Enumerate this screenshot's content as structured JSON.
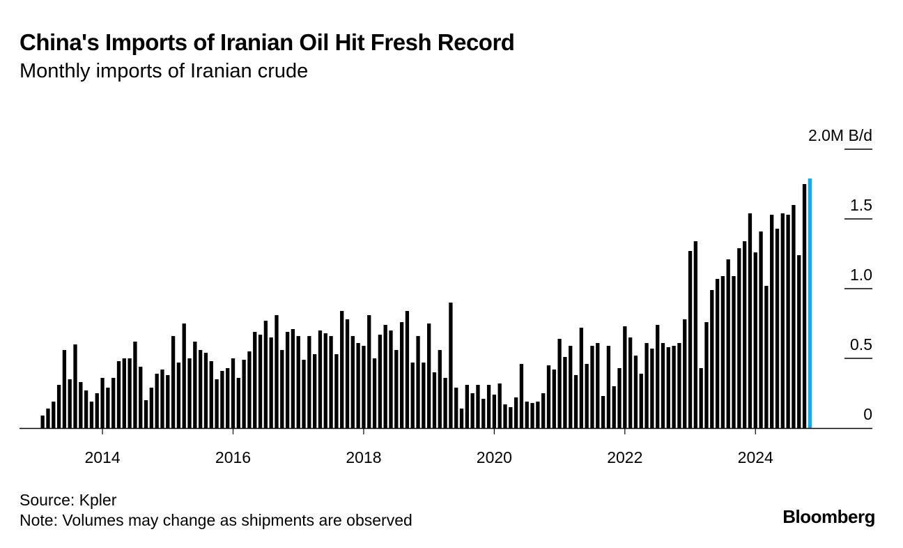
{
  "title": "China's Imports of Iranian Oil Hit Fresh Record",
  "subtitle": "Monthly imports of Iranian crude",
  "source": "Source: Kpler",
  "note": "Note: Volumes may change as shipments are observed",
  "brand": "Bloomberg",
  "colors": {
    "bar": "#000000",
    "highlight": "#1aa7ec",
    "axis": "#000000"
  },
  "chart_data": {
    "type": "bar",
    "title": "China's Imports of Iranian Oil Hit Fresh Record",
    "subtitle": "Monthly imports of Iranian crude",
    "x_start": "2013-02",
    "x_frequency": "monthly",
    "x_tick_labels": [
      "2014",
      "2016",
      "2018",
      "2020",
      "2022",
      "2024"
    ],
    "y_tick_labels": [
      "0",
      "0.5",
      "1.0",
      "1.5",
      "2.0M B/d"
    ],
    "y_ticks": [
      0,
      0.5,
      1.0,
      1.5,
      2.0
    ],
    "ylim": [
      0,
      2.0
    ],
    "y_unit": "M B/d",
    "grid": false,
    "legend": "none",
    "highlight_last": true,
    "values": [
      0.09,
      0.14,
      0.19,
      0.31,
      0.56,
      0.35,
      0.6,
      0.33,
      0.27,
      0.19,
      0.25,
      0.36,
      0.29,
      0.36,
      0.48,
      0.5,
      0.5,
      0.62,
      0.44,
      0.2,
      0.29,
      0.39,
      0.42,
      0.38,
      0.66,
      0.47,
      0.75,
      0.5,
      0.62,
      0.56,
      0.54,
      0.48,
      0.35,
      0.41,
      0.43,
      0.5,
      0.36,
      0.49,
      0.55,
      0.69,
      0.67,
      0.77,
      0.65,
      0.81,
      0.56,
      0.69,
      0.71,
      0.66,
      0.49,
      0.66,
      0.53,
      0.7,
      0.68,
      0.66,
      0.53,
      0.84,
      0.78,
      0.66,
      0.61,
      0.59,
      0.81,
      0.5,
      0.67,
      0.74,
      0.7,
      0.56,
      0.76,
      0.84,
      0.47,
      0.66,
      0.47,
      0.75,
      0.4,
      0.56,
      0.36,
      0.9,
      0.29,
      0.14,
      0.31,
      0.25,
      0.31,
      0.21,
      0.31,
      0.24,
      0.32,
      0.17,
      0.15,
      0.22,
      0.46,
      0.19,
      0.18,
      0.19,
      0.25,
      0.45,
      0.42,
      0.64,
      0.51,
      0.59,
      0.38,
      0.72,
      0.46,
      0.59,
      0.61,
      0.23,
      0.59,
      0.3,
      0.43,
      0.73,
      0.65,
      0.52,
      0.39,
      0.61,
      0.57,
      0.74,
      0.61,
      0.58,
      0.59,
      0.61,
      0.78,
      1.27,
      1.34,
      0.43,
      0.76,
      0.99,
      1.07,
      1.09,
      1.21,
      1.09,
      1.29,
      1.34,
      1.54,
      1.26,
      1.41,
      1.02,
      1.53,
      1.43,
      1.54,
      1.53,
      1.6,
      1.24,
      1.75,
      1.79
    ]
  }
}
